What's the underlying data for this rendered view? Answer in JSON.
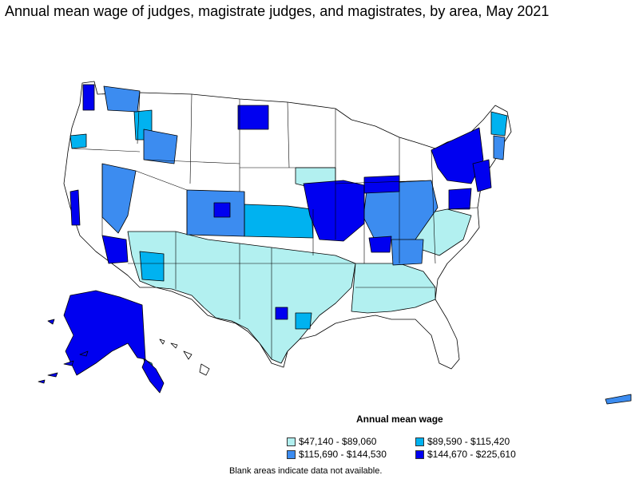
{
  "title": "Annual mean wage of judges, magistrate judges, and magistrates, by area, May 2021",
  "legend": {
    "title": "Annual mean wage",
    "items": [
      {
        "label": "$47,140 - $89,060",
        "color": "#b2f0f0"
      },
      {
        "label": "$89,590 - $115,420",
        "color": "#00b2f0"
      },
      {
        "label": "$115,690 - $144,530",
        "color": "#3c8cf0"
      },
      {
        "label": "$144,670 - $225,610",
        "color": "#0000f0"
      }
    ]
  },
  "footnote": "Blank areas indicate data not available."
}
